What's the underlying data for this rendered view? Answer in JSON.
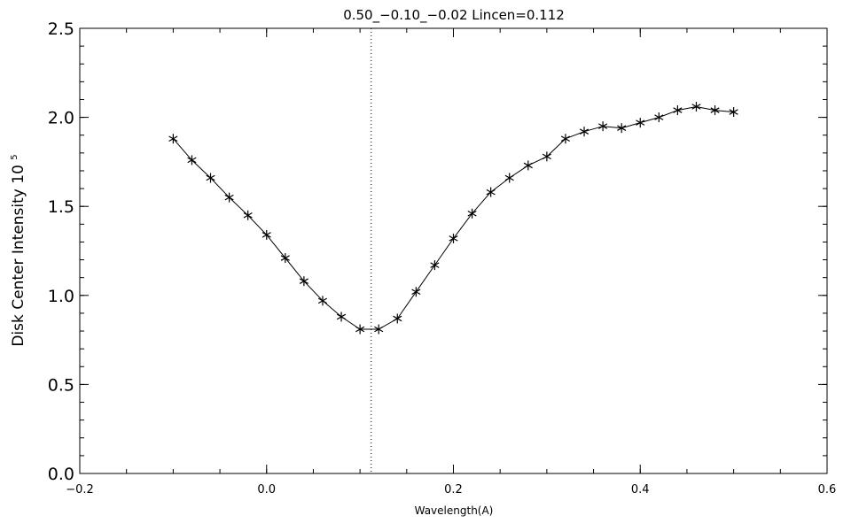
{
  "chart_data": {
    "type": "line",
    "title": "0.50_−0.10_−0.02   Lincen=0.112",
    "xlabel": "Wavelength(A)",
    "ylabel": "Disk Center Intensity 10",
    "ylabel_superscript": "5",
    "xlim": [
      -0.2,
      0.6
    ],
    "ylim": [
      0.0,
      2.5
    ],
    "x_ticks": [
      -0.2,
      0.0,
      0.2,
      0.4,
      0.6
    ],
    "x_tick_labels": [
      "−0.2",
      "0.0",
      "0.2",
      "0.4",
      "0.6"
    ],
    "y_ticks": [
      0.0,
      0.5,
      1.0,
      1.5,
      2.0,
      2.5
    ],
    "y_tick_labels": [
      "0.0",
      "0.5",
      "1.0",
      "1.5",
      "2.0",
      "2.5"
    ],
    "marker": "asterisk",
    "line_center": 0.112,
    "series": [
      {
        "x": [
          -0.1,
          -0.08,
          -0.06,
          -0.04,
          -0.02,
          0.0,
          0.02,
          0.04,
          0.06,
          0.08,
          0.1,
          0.12,
          0.14,
          0.16,
          0.18,
          0.2,
          0.22,
          0.24,
          0.26,
          0.28,
          0.3,
          0.32,
          0.34,
          0.36,
          0.38,
          0.4,
          0.42,
          0.44,
          0.46,
          0.48,
          0.5
        ],
        "y": [
          1.88,
          1.76,
          1.66,
          1.55,
          1.45,
          1.34,
          1.21,
          1.08,
          0.97,
          0.88,
          0.81,
          0.81,
          0.87,
          1.02,
          1.17,
          1.32,
          1.46,
          1.58,
          1.66,
          1.73,
          1.78,
          1.88,
          1.92,
          1.95,
          1.94,
          1.97,
          2.0,
          2.04,
          2.06,
          2.04,
          2.03
        ]
      }
    ]
  }
}
